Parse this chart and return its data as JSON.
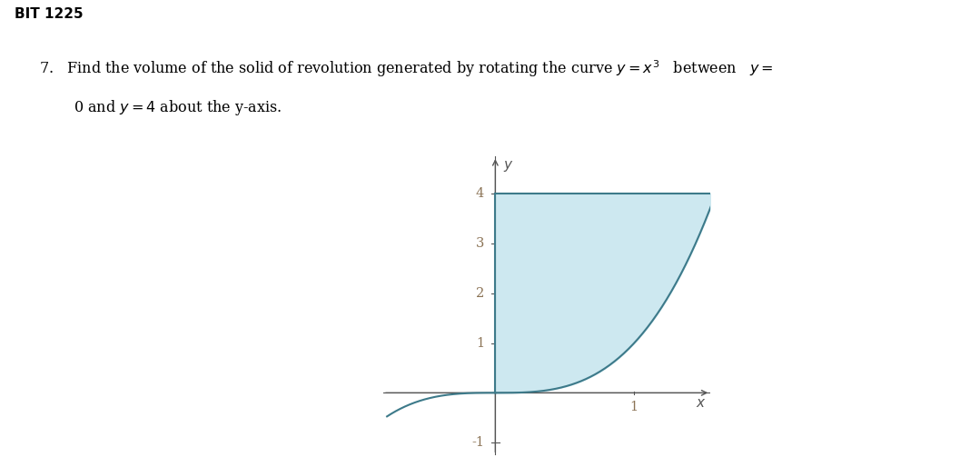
{
  "curve_color": "#3d7a8a",
  "fill_color": "#cde8f0",
  "fill_alpha": 1.0,
  "x_min": -0.85,
  "x_max": 1.55,
  "y_min": -1.35,
  "y_max": 4.75,
  "tick_color": "#8b7355",
  "axis_color": "#555555",
  "background_color": "#ffffff",
  "figsize": [
    10.79,
    5.14
  ],
  "dpi": 100
}
